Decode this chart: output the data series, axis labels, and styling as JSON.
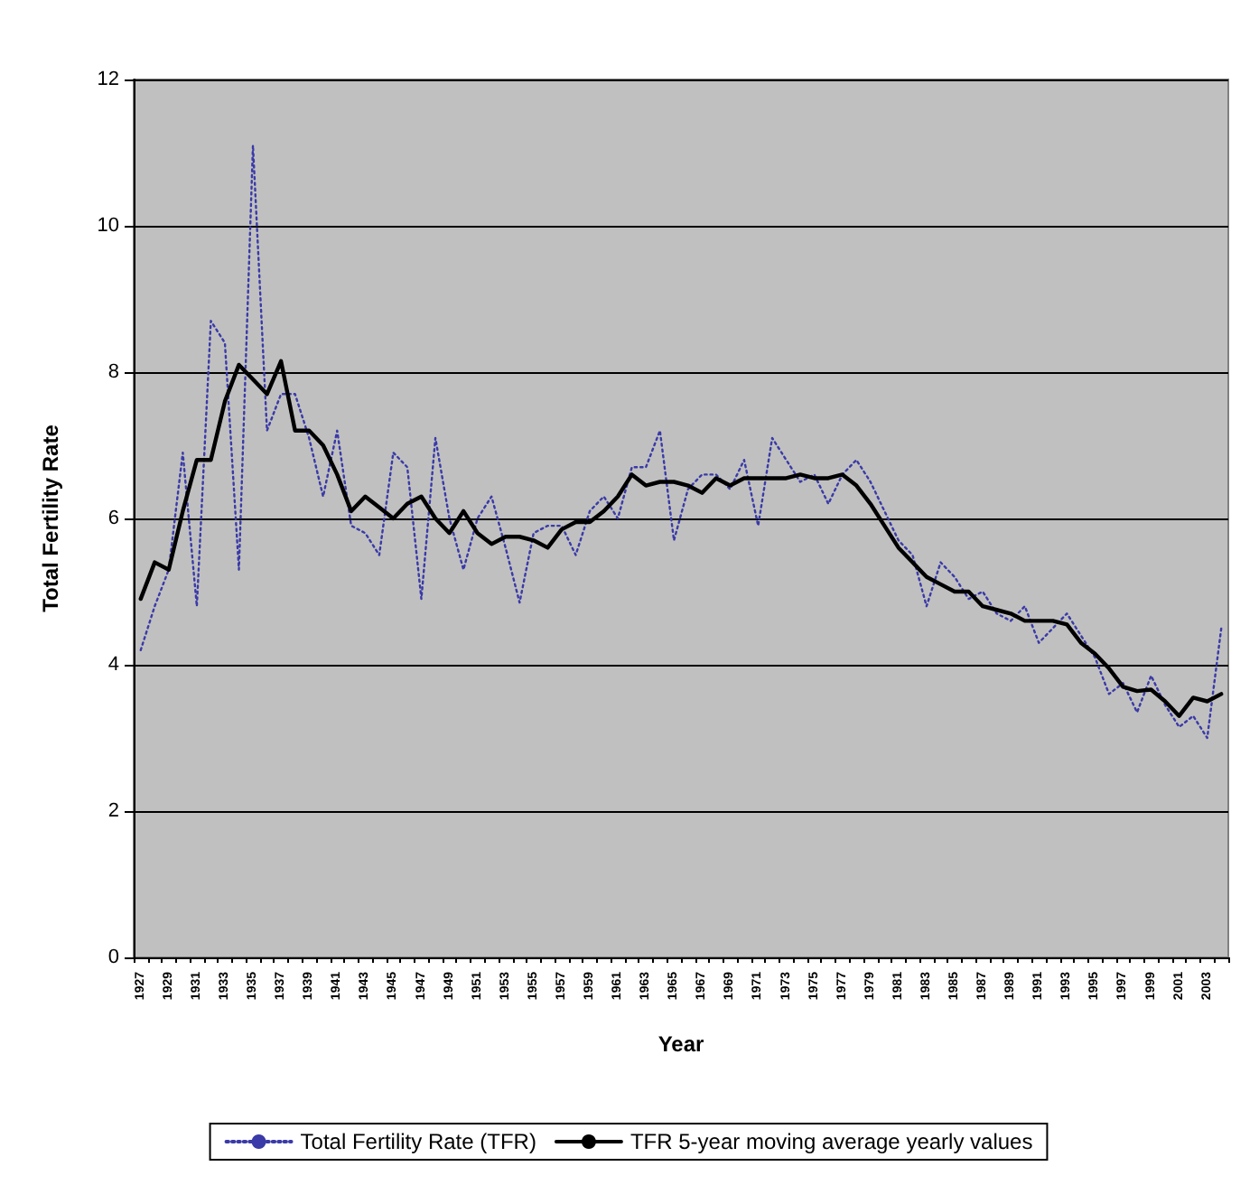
{
  "chart_data": {
    "type": "line",
    "xlabel": "Year",
    "ylabel": "Total Fertility Rate",
    "categories": [
      "1927",
      null,
      "1929",
      null,
      "1931",
      null,
      "1933",
      null,
      "1935",
      null,
      "1937",
      null,
      "1939",
      null,
      "1941",
      null,
      "1943",
      null,
      "1945",
      null,
      "1947",
      null,
      "1949",
      null,
      "1951",
      null,
      "1953",
      null,
      "1955",
      null,
      "1957",
      null,
      "1959",
      null,
      "1961",
      null,
      "1963",
      null,
      "1965",
      null,
      "1967",
      null,
      "1969",
      null,
      "1971",
      null,
      "1973",
      null,
      "1975",
      null,
      "1977",
      null,
      "1979",
      null,
      "1981",
      null,
      "1983",
      null,
      "1985",
      null,
      "1987",
      null,
      "1989",
      null,
      "1991",
      null,
      "1993",
      null,
      "1995",
      null,
      "1997",
      null,
      "1999",
      null,
      "2001",
      null,
      "2003",
      null
    ],
    "series": [
      {
        "name": "Total Fertility Rate (TFR)",
        "color": "#3a3aa8",
        "line_style": "dotted",
        "values": [
          4.2,
          4.8,
          5.3,
          6.9,
          4.8,
          8.7,
          8.4,
          5.3,
          11.1,
          7.2,
          7.7,
          7.7,
          7.1,
          6.3,
          7.2,
          5.9,
          5.8,
          5.5,
          6.9,
          6.7,
          4.9,
          7.1,
          6.0,
          5.3,
          6.0,
          6.3,
          5.6,
          4.85,
          5.8,
          5.9,
          5.9,
          5.5,
          6.1,
          6.3,
          6.0,
          6.7,
          6.7,
          7.2,
          5.7,
          6.4,
          6.6,
          6.6,
          6.4,
          6.8,
          5.9,
          7.1,
          6.8,
          6.5,
          6.6,
          6.2,
          6.6,
          6.8,
          6.5,
          6.1,
          5.7,
          5.5,
          4.8,
          5.4,
          5.2,
          4.9,
          5.0,
          4.7,
          4.6,
          4.8,
          4.3,
          4.5,
          4.7,
          4.4,
          4.1,
          3.6,
          3.75,
          3.35,
          3.85,
          3.45,
          3.15,
          3.3,
          3.0,
          4.5
        ]
      },
      {
        "name": "TFR 5-year moving average yearly values",
        "color": "#000000",
        "line_style": "solid",
        "values": [
          4.9,
          5.4,
          5.3,
          6.1,
          6.8,
          6.8,
          7.6,
          8.1,
          7.9,
          7.7,
          8.15,
          7.2,
          7.2,
          7.0,
          6.6,
          6.1,
          6.3,
          6.15,
          6.0,
          6.2,
          6.3,
          6.0,
          5.8,
          6.1,
          5.8,
          5.65,
          5.75,
          5.75,
          5.7,
          5.6,
          5.85,
          5.95,
          5.95,
          6.1,
          6.3,
          6.6,
          6.45,
          6.5,
          6.5,
          6.45,
          6.35,
          6.55,
          6.45,
          6.55,
          6.55,
          6.55,
          6.55,
          6.6,
          6.55,
          6.55,
          6.6,
          6.45,
          6.2,
          5.9,
          5.6,
          5.4,
          5.2,
          5.1,
          5.0,
          5.0,
          4.8,
          4.75,
          4.7,
          4.6,
          4.6,
          4.6,
          4.55,
          4.3,
          4.15,
          3.95,
          3.7,
          3.64,
          3.66,
          3.5,
          3.3,
          3.55,
          3.5,
          3.6
        ]
      }
    ],
    "ylim": [
      0,
      12
    ],
    "yticks": [
      0,
      2,
      4,
      6,
      8,
      10,
      12
    ],
    "grid": "y",
    "legend": "bottom",
    "marker": "none"
  }
}
